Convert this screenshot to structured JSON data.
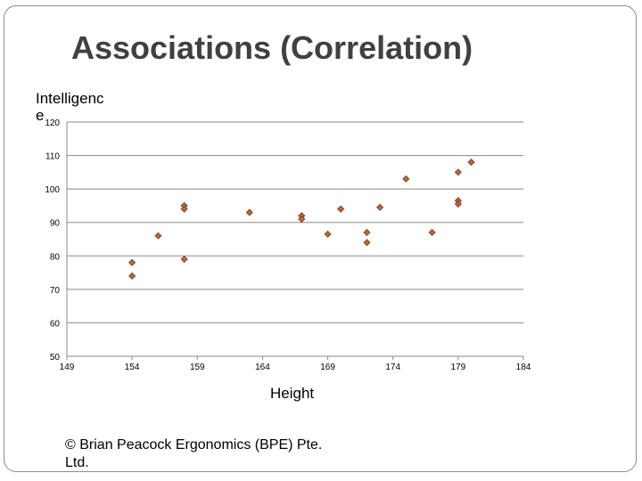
{
  "slide": {
    "title": "Associations (Correlation)",
    "footer": "© Brian Peacock Ergonomics (BPE) Pte. Ltd."
  },
  "chart_data": {
    "type": "scatter",
    "title": "",
    "xlabel": "Height",
    "ylabel": "Intelligence",
    "xlim": [
      149,
      184
    ],
    "ylim": [
      50,
      120
    ],
    "xticks": [
      149,
      154,
      159,
      164,
      169,
      174,
      179,
      184
    ],
    "yticks": [
      50,
      60,
      70,
      80,
      90,
      100,
      110,
      120
    ],
    "grid": "horizontal",
    "marker_color": "#c0643a",
    "series": [
      {
        "points": [
          {
            "x": 154,
            "y": 78
          },
          {
            "x": 154,
            "y": 74
          },
          {
            "x": 156,
            "y": 86
          },
          {
            "x": 158,
            "y": 95
          },
          {
            "x": 158,
            "y": 94
          },
          {
            "x": 158,
            "y": 79
          },
          {
            "x": 163,
            "y": 93
          },
          {
            "x": 167,
            "y": 92
          },
          {
            "x": 167,
            "y": 91
          },
          {
            "x": 169,
            "y": 86.5
          },
          {
            "x": 170,
            "y": 94
          },
          {
            "x": 172,
            "y": 87
          },
          {
            "x": 172,
            "y": 84
          },
          {
            "x": 173,
            "y": 94.5
          },
          {
            "x": 175,
            "y": 103
          },
          {
            "x": 177,
            "y": 87
          },
          {
            "x": 179,
            "y": 105
          },
          {
            "x": 179,
            "y": 96.5
          },
          {
            "x": 179,
            "y": 95.5
          },
          {
            "x": 180,
            "y": 108
          }
        ]
      }
    ]
  }
}
